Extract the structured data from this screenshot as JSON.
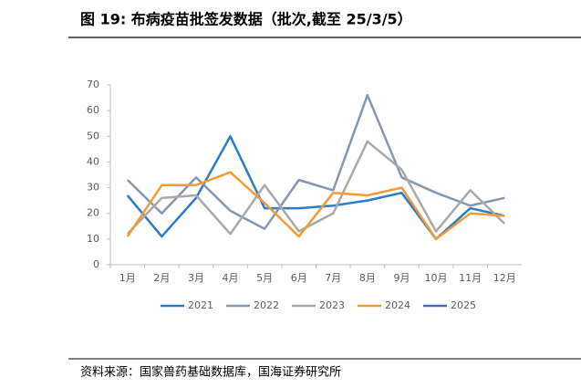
{
  "header": {
    "title": "图 19:  布病疫苗批签发数据（批次,截至 25/3/5）"
  },
  "chart_data": {
    "type": "line",
    "categories": [
      "1月",
      "2月",
      "3月",
      "4月",
      "5月",
      "6月",
      "7月",
      "8月",
      "9月",
      "10月",
      "11月",
      "12月"
    ],
    "series": [
      {
        "name": "2021",
        "color": "#2b7bcb",
        "values": [
          27,
          11,
          26,
          50,
          22,
          22,
          23,
          25,
          28,
          10,
          22,
          19
        ]
      },
      {
        "name": "2022",
        "color": "#8497b0",
        "values": [
          33,
          20,
          34,
          21,
          14,
          33,
          29,
          66,
          34,
          28,
          23,
          26
        ]
      },
      {
        "name": "2023",
        "color": "#a9a9a9",
        "values": [
          12,
          26,
          27,
          12,
          31,
          13,
          20,
          48,
          37,
          13,
          29,
          16
        ]
      },
      {
        "name": "2024",
        "color": "#f39a33",
        "values": [
          11,
          31,
          31,
          36,
          24,
          11,
          28,
          27,
          30,
          10,
          20,
          19
        ]
      },
      {
        "name": "2025",
        "color": "#4a6bb4",
        "values": [
          null,
          null,
          null,
          null,
          null,
          null,
          null,
          null,
          null,
          null,
          null,
          null
        ]
      }
    ],
    "ylim": [
      0,
      70
    ],
    "yticks": [
      0,
      10,
      20,
      30,
      40,
      50,
      60,
      70
    ],
    "grid": false
  },
  "footer": {
    "source": "资料来源：国家兽药基础数据库，国海证券研究所"
  }
}
